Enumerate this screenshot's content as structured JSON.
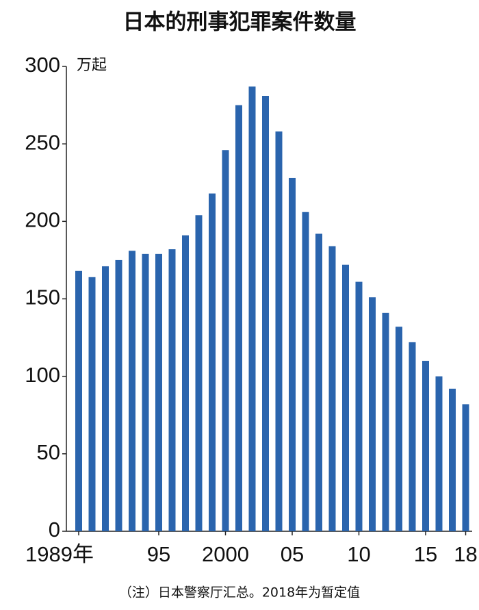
{
  "chart_data": {
    "type": "bar",
    "title": "日本的刑事犯罪案件数量",
    "y_label": "万起",
    "note": "（注）日本警察厅汇总。2018年为暂定值",
    "categories": [
      "1989年",
      null,
      null,
      null,
      null,
      null,
      "95",
      null,
      null,
      null,
      null,
      "2000",
      null,
      null,
      null,
      null,
      "05",
      null,
      null,
      null,
      null,
      "10",
      null,
      null,
      null,
      null,
      "15",
      null,
      null,
      "18"
    ],
    "values": [
      168,
      164,
      171,
      175,
      181,
      179,
      179,
      182,
      191,
      204,
      218,
      246,
      275,
      287,
      281,
      258,
      228,
      206,
      192,
      184,
      172,
      161,
      151,
      141,
      132,
      122,
      110,
      100,
      92,
      82
    ],
    "color": "#2a64ad",
    "ylim": [
      0,
      300
    ],
    "yticks": [
      0,
      50,
      100,
      150,
      200,
      250,
      300
    ],
    "grid": false
  }
}
